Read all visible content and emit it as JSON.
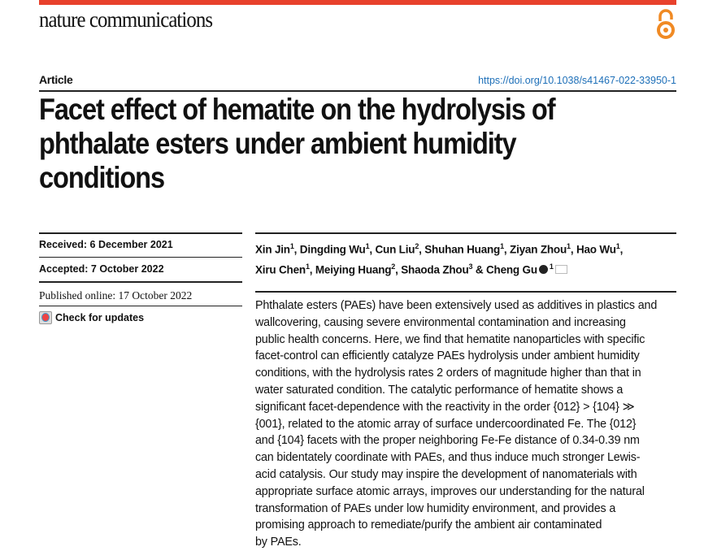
{
  "header": {
    "journal": "nature communications",
    "brand_color": "#e8412c",
    "open_access_icon": "open-access-lock-icon",
    "open_access_color": "#f08a24",
    "article_type": "Article",
    "doi": "https://doi.org/10.1038/s41467-022-33950-1"
  },
  "title_lines": [
    "Facet effect of hematite on the hydrolysis of",
    "phthalate esters under ambient humidity",
    "conditions"
  ],
  "dates": {
    "received": "Received: 6 December 2021",
    "accepted": "Accepted: 7 October 2022",
    "published": "Published online: 17 October 2022"
  },
  "check_for_updates": "Check for updates",
  "authors": [
    {
      "name": "Xin Jin",
      "aff": "1"
    },
    {
      "name": "Dingding Wu",
      "aff": "1"
    },
    {
      "name": "Cun Liu",
      "aff": "2"
    },
    {
      "name": "Shuhan Huang",
      "aff": "1"
    },
    {
      "name": "Ziyan Zhou",
      "aff": "1"
    },
    {
      "name": "Hao Wu",
      "aff": "1"
    },
    {
      "name": "Xiru Chen",
      "aff": "1"
    },
    {
      "name": "Meiying Huang",
      "aff": "2"
    },
    {
      "name": "Shaoda Zhou",
      "aff": "3"
    },
    {
      "name": "Cheng Gu",
      "aff": "1"
    }
  ],
  "abstract_lines": [
    "Phthalate esters (PAEs) have been extensively used as additives in plastics and",
    "wallcovering, causing severe environmental contamination and increasing",
    "public health concerns. Here, we find that hematite nanoparticles with specific",
    "facet-control can efficiently catalyze PAEs hydrolysis under ambient humidity",
    "conditions, with the hydrolysis rates 2 orders of magnitude higher than that in",
    "water saturated condition. The catalytic performance of hematite shows a",
    "significant facet-dependence with the reactivity in the order {012} > {104} ≫",
    "{001}, related to the atomic array of surface undercoordinated Fe. The {012}",
    "and {104} facets with the proper neighboring Fe-Fe distance of 0.34-0.39 nm",
    "can bidentately coordinate with PAEs, and thus induce much stronger Lewis-",
    "acid catalysis. Our study may inspire the development of nanomaterials with",
    "appropriate surface atomic arrays, improves our understanding for the natural",
    "transformation of PAEs under low humidity environment, and provides a",
    "promising approach to remediate/purify the ambient air contaminated",
    "by PAEs."
  ]
}
